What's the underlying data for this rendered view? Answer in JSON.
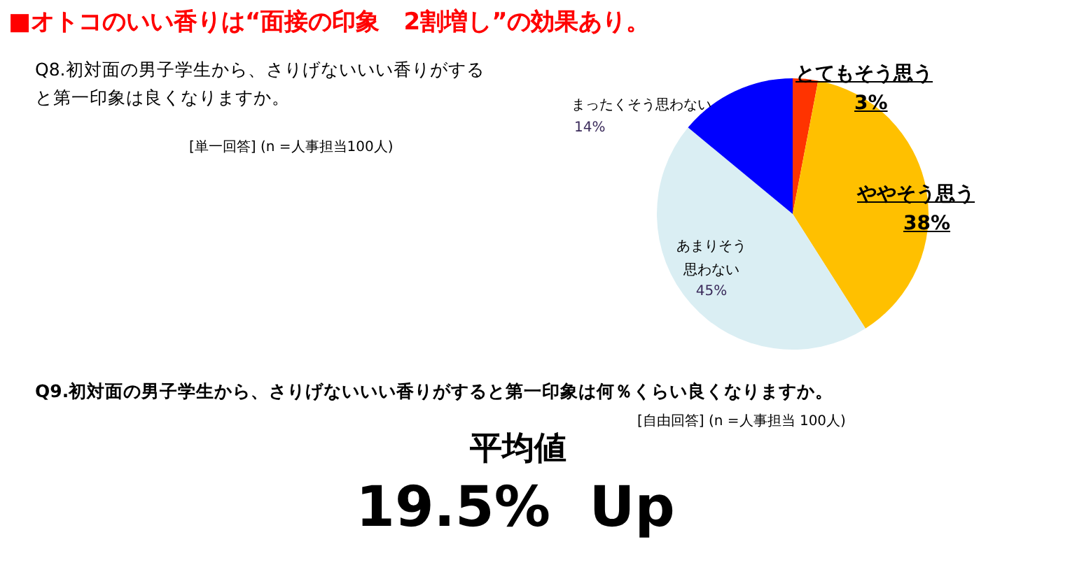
{
  "chart_data": {
    "type": "pie",
    "title": "■オトコのいい香りは“面接の印象　2割増し”の効果あり。",
    "subtitle": "Q8.初対面の男子学生から、さりげないいい香りがすると第一印象は良くなりますか。",
    "categories": [
      "とてもそう思う",
      "ややそう思う",
      "あまりそう思わない",
      "まったくそう思わない"
    ],
    "values": [
      3,
      38,
      45,
      14
    ],
    "colors": [
      "#ff3300",
      "#ffc000",
      "#daeef3",
      "#0000ff"
    ],
    "value_labels": [
      "3%",
      "38%",
      "45%",
      "14%"
    ],
    "annotations": [
      "[単一回答] (n =人事担当100人)",
      "Q9.初対面の男子学生から、さりげないいい香りがすると第一印象は何％くらい良くなりますか。",
      "[自由回答] (n =人事担当 100人)",
      "平均値",
      "19.5%  Up"
    ]
  }
}
